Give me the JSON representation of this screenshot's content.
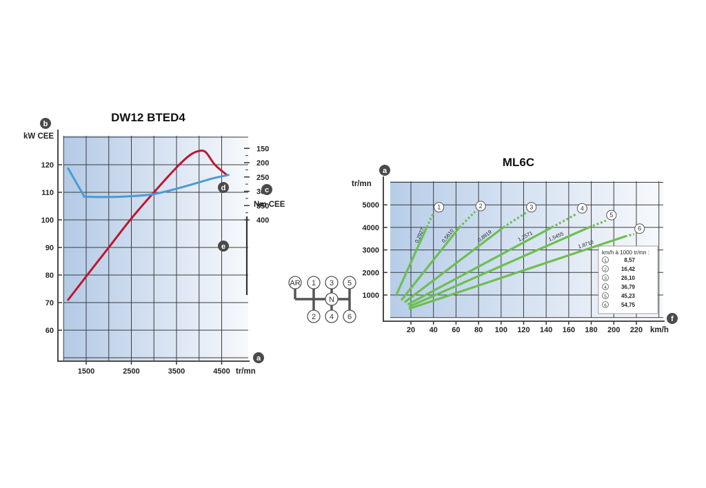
{
  "colors": {
    "power": "#c0152f",
    "torque": "#4a9ad4",
    "gear_lines": "#6cbf4f",
    "grid": "#3a3a3a",
    "panel_left": "#b7cde8",
    "panel_right": "#f5f7fb",
    "badge": "#4a4a4a"
  },
  "chart_data": [
    {
      "type": "line",
      "title": "DW12 BTED4",
      "x_unit": "tr/mn",
      "x_ticks": [
        "1500",
        "2500",
        "3500",
        "4500"
      ],
      "xlim": [
        500,
        5000
      ],
      "y_left_unit": "kW CEE",
      "y_left_ticks": [
        "120",
        "110",
        "100",
        "90",
        "80",
        "70",
        "60"
      ],
      "y_left_lim": [
        50,
        130
      ],
      "y_right_unit": "Nm CEE",
      "y_right_ticks": [
        "400",
        "350",
        "300",
        "250",
        "200",
        "150"
      ],
      "y_right_lim": [
        130,
        400
      ],
      "badges": {
        "power_axis": "b",
        "rpm_axis": "a",
        "torque_axis": "c",
        "power_curve": "d",
        "torque_curve": "e"
      },
      "series": [
        {
          "key": "power",
          "axis": "left",
          "points": [
            [
              1100,
              71
            ],
            [
              1500,
              79.5
            ],
            [
              2000,
              90
            ],
            [
              2500,
              100.5
            ],
            [
              3000,
              110
            ],
            [
              3500,
              119
            ],
            [
              3800,
              123.5
            ],
            [
              4000,
              125
            ],
            [
              4150,
              124.5
            ],
            [
              4350,
              120
            ],
            [
              4600,
              116.5
            ]
          ]
        },
        {
          "key": "torque",
          "axis": "right",
          "points": [
            [
              1100,
              220
            ],
            [
              1300,
              275
            ],
            [
              1450,
              315
            ],
            [
              1500,
              319
            ],
            [
              2000,
              320
            ],
            [
              2500,
              317
            ],
            [
              3000,
              310
            ],
            [
              3500,
              291
            ],
            [
              4000,
              269
            ],
            [
              4300,
              255
            ],
            [
              4650,
              243
            ]
          ]
        }
      ]
    },
    {
      "type": "line",
      "title": "ML6C",
      "x_unit": "km/h",
      "x_ticks": [
        "20",
        "40",
        "60",
        "80",
        "100",
        "120",
        "140",
        "160",
        "180",
        "200",
        "220"
      ],
      "xlim": [
        0,
        240
      ],
      "y_unit": "tr/mn",
      "y_ticks": [
        "5000",
        "4000",
        "3000",
        "2000",
        "1000"
      ],
      "ylim": [
        0,
        6100
      ],
      "badges": {
        "rpm_axis": "a",
        "speed_axis": "f"
      },
      "legend_title": "km/h à 1000 tr/mn :",
      "series": [
        {
          "gear": "1",
          "ratio": "0,2927",
          "speed_per_1000": "8,57",
          "solid": [
            [
              7,
              1000
            ],
            [
              34,
              4000
            ]
          ],
          "dotted": [
            [
              34,
              4000
            ],
            [
              40,
              4650
            ]
          ]
        },
        {
          "gear": "2",
          "ratio": "0,5610",
          "speed_per_1000": "16,42",
          "solid": [
            [
              12,
              800
            ],
            [
              63,
              4000
            ]
          ],
          "dotted": [
            [
              63,
              4000
            ],
            [
              77,
              4700
            ]
          ]
        },
        {
          "gear": "3",
          "ratio": "0,8919",
          "speed_per_1000": "26,10",
          "solid": [
            [
              15,
              700
            ],
            [
              102,
              4000
            ]
          ],
          "dotted": [
            [
              102,
              4000
            ],
            [
              122,
              4650
            ]
          ]
        },
        {
          "gear": "4",
          "ratio": "1,2571",
          "speed_per_1000": "36,79",
          "solid": [
            [
              18,
              600
            ],
            [
              145,
              4000
            ]
          ],
          "dotted": [
            [
              145,
              4000
            ],
            [
              167,
              4600
            ]
          ]
        },
        {
          "gear": "5",
          "ratio": "1,5455",
          "speed_per_1000": "45,23",
          "solid": [
            [
              19,
              500
            ],
            [
              178,
              4000
            ]
          ],
          "dotted": [
            [
              178,
              4000
            ],
            [
              193,
              4300
            ]
          ]
        },
        {
          "gear": "6",
          "ratio": "1,8710",
          "speed_per_1000": "54,75",
          "solid": [
            [
              19,
              400
            ],
            [
              210,
              3600
            ]
          ],
          "dotted": [
            [
              210,
              3600
            ],
            [
              218,
              3700
            ]
          ]
        }
      ]
    }
  ],
  "gearbox": {
    "top": [
      "AR",
      "1",
      "3",
      "5"
    ],
    "bottom": [
      "2",
      "4",
      "6"
    ],
    "neutral": "N"
  }
}
